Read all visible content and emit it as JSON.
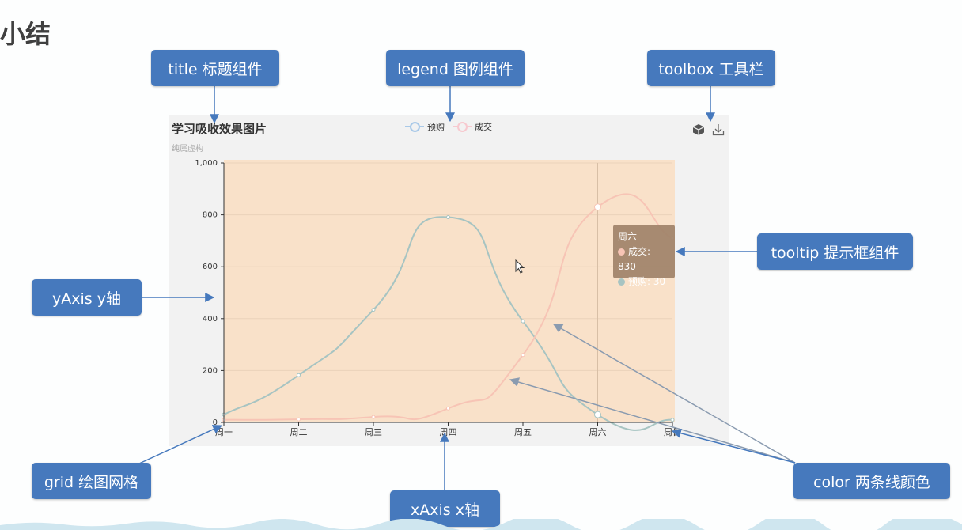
{
  "slide": {
    "title": "小结"
  },
  "callouts": {
    "title": "title 标题组件",
    "legend": "legend 图例组件",
    "toolbox": "toolbox 工具栏",
    "tooltip": "tooltip 提示框组件",
    "yaxis": "yAxis y轴",
    "grid": "grid 绘图网格",
    "xaxis": "xAxis x轴",
    "color": "color 两条线颜色"
  },
  "toolbox": {
    "icons": [
      "3d-box-icon",
      "download-icon"
    ]
  },
  "tooltip": {
    "title": "周六",
    "rows": [
      "成交: 830",
      "预购: 30"
    ]
  },
  "colors": {
    "accent": "#4679bd",
    "series_a": "#a7c4c2",
    "series_b": "#f7c4b5",
    "grid_bg": "#f9e1c9"
  },
  "chart_data": {
    "type": "line",
    "title": "学习吸收效果图片",
    "subtitle": "纯属虚构",
    "categories": [
      "周一",
      "周二",
      "周三",
      "周四",
      "周五",
      "周六",
      "周日"
    ],
    "series": [
      {
        "name": "预购",
        "values": [
          30,
          182,
          434,
          791,
          390,
          30,
          10
        ]
      },
      {
        "name": "成交",
        "values": [
          10,
          12,
          21,
          54,
          260,
          830,
          710
        ]
      }
    ],
    "ylim": [
      0,
      1000
    ],
    "yticks": [
      "0",
      "200",
      "400",
      "600",
      "800",
      "1,000"
    ],
    "smooth": true,
    "legend_position": "top-center",
    "grid": true
  }
}
